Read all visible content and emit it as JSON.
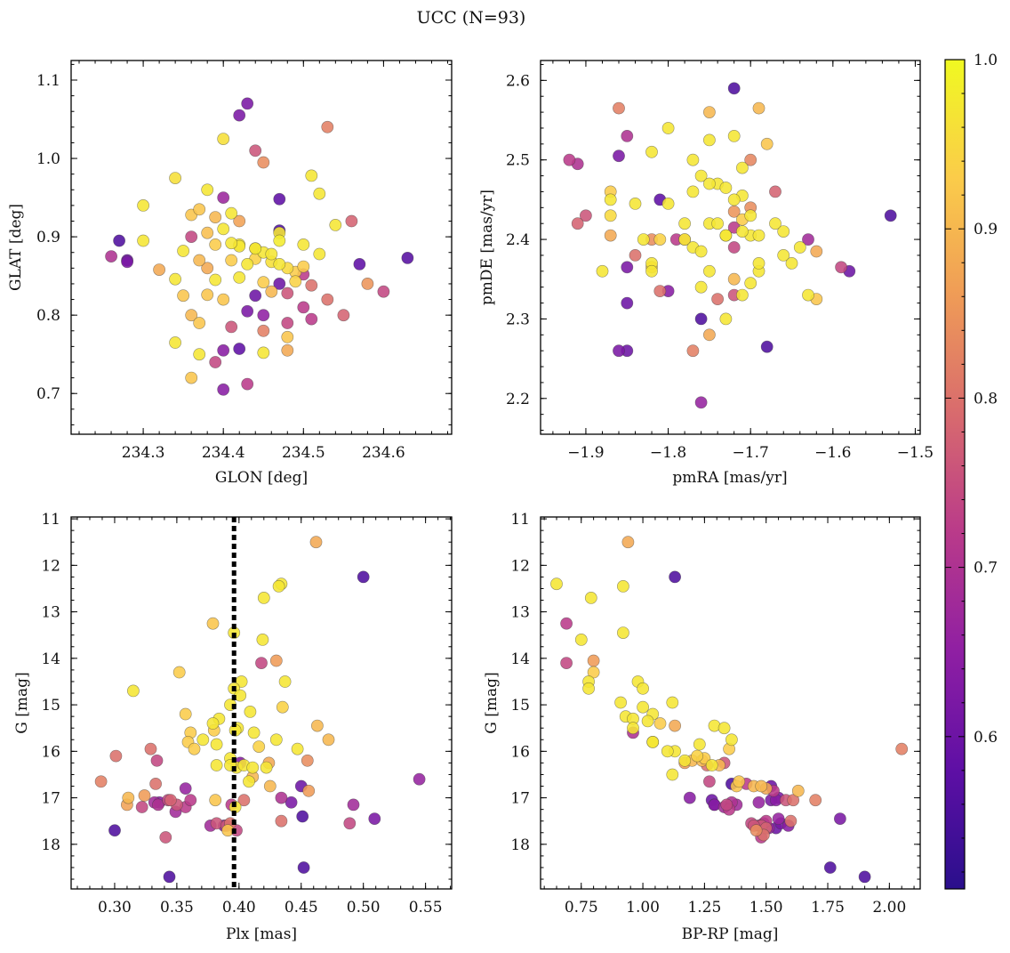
{
  "figure_title": "UCC (N=93)",
  "colorbar": {
    "range": [
      0.51,
      1.0
    ],
    "ticks": [
      "0.6",
      "0.7",
      "0.8",
      "0.9",
      "1.0"
    ],
    "tick_values": [
      0.6,
      0.7,
      0.8,
      0.9,
      1.0
    ],
    "colormap": [
      "#2a0f8c",
      "#5e0fa5",
      "#8f1fa3",
      "#b93a8a",
      "#d86a6e",
      "#ef9b57",
      "#fbcc4a",
      "#f0f921"
    ]
  },
  "chart_data": [
    {
      "type": "scatter",
      "xlabel": "GLON [deg]",
      "ylabel": "GLAT [deg]",
      "xlim": [
        234.21,
        234.685
      ],
      "ylim": [
        0.648,
        1.125
      ],
      "xticks": [
        "234.3",
        "234.4",
        "234.5",
        "234.6"
      ],
      "xtick_values": [
        234.3,
        234.4,
        234.5,
        234.6
      ],
      "yticks": [
        "0.7",
        "0.8",
        "0.9",
        "1.0",
        "1.1"
      ],
      "ytick_values": [
        0.7,
        0.8,
        0.9,
        1.0,
        1.1
      ],
      "y_inverted": false,
      "x": [
        234.43,
        234.42,
        234.53,
        234.4,
        234.44,
        234.45,
        234.51,
        234.34,
        234.38,
        234.3,
        234.4,
        234.47,
        234.52,
        234.41,
        234.36,
        234.37,
        234.39,
        234.42,
        234.54,
        234.56,
        234.3,
        234.36,
        234.38,
        234.4,
        234.42,
        234.44,
        234.45,
        234.47,
        234.5,
        234.52,
        234.27,
        234.28,
        234.32,
        234.38,
        234.41,
        234.43,
        234.44,
        234.46,
        234.47,
        234.48,
        234.49,
        234.5,
        234.26,
        234.28,
        234.34,
        234.39,
        234.42,
        234.45,
        234.47,
        234.49,
        234.51,
        234.57,
        234.58,
        234.6,
        234.63,
        234.35,
        234.38,
        234.4,
        234.44,
        234.46,
        234.48,
        234.5,
        234.36,
        234.43,
        234.45,
        234.48,
        234.51,
        234.53,
        234.55,
        234.37,
        234.41,
        234.45,
        234.48,
        234.34,
        234.37,
        234.4,
        234.42,
        234.45,
        234.48,
        234.39,
        234.36,
        234.4,
        234.43,
        234.47,
        234.39,
        234.42,
        234.46,
        234.35,
        234.37,
        234.41,
        234.44,
        234.47,
        234.5
      ],
      "y": [
        1.07,
        1.055,
        1.04,
        1.025,
        1.01,
        0.995,
        0.978,
        0.975,
        0.96,
        0.94,
        0.95,
        0.948,
        0.955,
        0.93,
        0.928,
        0.935,
        0.925,
        0.92,
        0.915,
        0.92,
        0.895,
        0.9,
        0.905,
        0.91,
        0.89,
        0.885,
        0.88,
        0.895,
        0.89,
        0.878,
        0.895,
        0.87,
        0.858,
        0.86,
        0.87,
        0.865,
        0.872,
        0.868,
        0.865,
        0.86,
        0.855,
        0.852,
        0.875,
        0.868,
        0.846,
        0.845,
        0.848,
        0.842,
        0.84,
        0.843,
        0.838,
        0.865,
        0.84,
        0.83,
        0.873,
        0.825,
        0.826,
        0.82,
        0.825,
        0.83,
        0.828,
        0.81,
        0.8,
        0.805,
        0.8,
        0.79,
        0.795,
        0.82,
        0.8,
        0.79,
        0.785,
        0.78,
        0.772,
        0.765,
        0.75,
        0.755,
        0.757,
        0.752,
        0.755,
        0.74,
        0.72,
        0.705,
        0.712,
        0.908,
        0.89,
        0.888,
        0.878,
        0.882,
        0.87,
        0.892,
        0.885,
        0.905,
        0.862
      ],
      "c": [
        0.62,
        0.62,
        0.82,
        0.96,
        0.76,
        0.84,
        0.97,
        0.96,
        0.97,
        0.97,
        0.67,
        0.58,
        0.97,
        0.97,
        0.92,
        0.92,
        0.9,
        0.87,
        0.97,
        0.78,
        0.97,
        0.74,
        0.91,
        0.97,
        0.97,
        0.88,
        0.97,
        0.98,
        0.97,
        0.97,
        0.56,
        0.6,
        0.88,
        0.88,
        0.93,
        0.97,
        0.94,
        0.96,
        0.97,
        0.95,
        0.93,
        0.72,
        0.7,
        0.62,
        0.97,
        0.97,
        0.97,
        0.93,
        0.6,
        0.94,
        0.8,
        0.58,
        0.85,
        0.74,
        0.57,
        0.92,
        0.92,
        0.92,
        0.6,
        0.9,
        0.76,
        0.72,
        0.9,
        0.62,
        0.65,
        0.74,
        0.72,
        0.8,
        0.78,
        0.92,
        0.76,
        0.82,
        0.92,
        0.97,
        0.97,
        0.64,
        0.58,
        0.97,
        0.88,
        0.74,
        0.92,
        0.64,
        0.72,
        0.56,
        0.93,
        0.97,
        0.97,
        0.97,
        0.9,
        0.97,
        0.98,
        0.97,
        0.93
      ]
    },
    {
      "type": "scatter",
      "xlabel": "pmRA [mas/yr]",
      "ylabel": "pmDE [mas/yr]",
      "xlim": [
        -1.955,
        -1.494
      ],
      "ylim": [
        2.155,
        2.625
      ],
      "xticks": [
        "−1.9",
        "−1.8",
        "−1.7",
        "−1.6",
        "−1.5"
      ],
      "xtick_values": [
        -1.9,
        -1.8,
        -1.7,
        -1.6,
        -1.5
      ],
      "yticks": [
        "2.2",
        "2.3",
        "2.4",
        "2.5",
        "2.6"
      ],
      "ytick_values": [
        2.2,
        2.3,
        2.4,
        2.5,
        2.6
      ],
      "y_inverted": false,
      "x": [
        -1.72,
        -1.86,
        -1.75,
        -1.69,
        -1.85,
        -1.8,
        -1.75,
        -1.72,
        -1.92,
        -1.91,
        -1.82,
        -1.86,
        -1.77,
        -1.7,
        -1.68,
        -1.76,
        -1.74,
        -1.71,
        -1.87,
        -1.81,
        -1.73,
        -1.71,
        -1.8,
        -1.77,
        -1.67,
        -1.7,
        -1.84,
        -1.87,
        -1.78,
        -1.72,
        -1.9,
        -1.91,
        -1.53,
        -1.71,
        -1.75,
        -1.72,
        -1.63,
        -1.66,
        -1.87,
        -1.79,
        -1.82,
        -1.77,
        -1.73,
        -1.7,
        -1.64,
        -1.62,
        -1.84,
        -1.82,
        -1.76,
        -1.59,
        -1.88,
        -1.82,
        -1.75,
        -1.69,
        -1.65,
        -1.58,
        -1.72,
        -1.7,
        -1.8,
        -1.63,
        -1.62,
        -1.71,
        -1.74,
        -1.76,
        -1.72,
        -1.81,
        -1.85,
        -1.76,
        -1.73,
        -1.75,
        -1.85,
        -1.77,
        -1.68,
        -1.85,
        -1.86,
        -1.76,
        -1.78,
        -1.78,
        -1.81,
        -1.72,
        -1.69,
        -1.71,
        -1.73,
        -1.82,
        -1.67,
        -1.66,
        -1.74,
        -1.69,
        -1.83,
        -1.7,
        -1.72,
        -1.75,
        -1.87
      ],
      "y": [
        2.59,
        2.565,
        2.56,
        2.565,
        2.53,
        2.54,
        2.525,
        2.53,
        2.5,
        2.495,
        2.51,
        2.505,
        2.5,
        2.5,
        2.52,
        2.48,
        2.47,
        2.49,
        2.46,
        2.45,
        2.465,
        2.455,
        2.445,
        2.46,
        2.46,
        2.44,
        2.445,
        2.43,
        2.42,
        2.435,
        2.43,
        2.42,
        2.43,
        2.425,
        2.42,
        2.415,
        2.4,
        2.41,
        2.405,
        2.4,
        2.4,
        2.39,
        2.405,
        2.405,
        2.39,
        2.385,
        2.38,
        2.37,
        2.385,
        2.365,
        2.36,
        2.365,
        2.36,
        2.36,
        2.37,
        2.36,
        2.35,
        2.345,
        2.335,
        2.33,
        2.325,
        2.33,
        2.325,
        2.34,
        2.33,
        2.335,
        2.365,
        2.3,
        2.3,
        2.28,
        2.26,
        2.26,
        2.265,
        2.32,
        2.26,
        2.195,
        2.4,
        2.4,
        2.4,
        2.39,
        2.37,
        2.41,
        2.405,
        2.36,
        2.42,
        2.38,
        2.42,
        2.405,
        2.4,
        2.43,
        2.45,
        2.47,
        2.45
      ],
      "c": [
        0.56,
        0.82,
        0.9,
        0.9,
        0.7,
        0.97,
        0.97,
        0.97,
        0.72,
        0.7,
        0.97,
        0.62,
        0.97,
        0.83,
        0.92,
        0.97,
        0.97,
        0.97,
        0.93,
        0.58,
        0.97,
        0.97,
        0.97,
        0.97,
        0.78,
        0.84,
        0.97,
        0.95,
        0.97,
        0.85,
        0.76,
        0.78,
        0.56,
        0.93,
        0.97,
        0.72,
        0.68,
        0.97,
        0.88,
        0.72,
        0.84,
        0.97,
        0.97,
        0.97,
        0.97,
        0.88,
        0.8,
        0.97,
        0.97,
        0.74,
        0.97,
        0.94,
        0.97,
        0.97,
        0.97,
        0.6,
        0.9,
        0.97,
        0.64,
        0.97,
        0.92,
        0.97,
        0.8,
        0.97,
        0.76,
        0.8,
        0.62,
        0.56,
        0.97,
        0.88,
        0.6,
        0.82,
        0.56,
        0.6,
        0.62,
        0.66,
        0.97,
        0.82,
        0.94,
        0.74,
        0.97,
        0.97,
        0.97,
        0.97,
        0.97,
        0.97,
        0.97,
        0.97,
        0.97,
        0.97,
        0.97,
        0.97,
        0.97
      ]
    },
    {
      "type": "scatter",
      "xlabel": "Plx [mas]",
      "ylabel": "G [mag]",
      "xlim": [
        0.265,
        0.571
      ],
      "ylim": [
        10.96,
        18.96
      ],
      "xticks": [
        "0.30",
        "0.35",
        "0.40",
        "0.45",
        "0.50",
        "0.55"
      ],
      "xtick_values": [
        0.3,
        0.35,
        0.4,
        0.45,
        0.5,
        0.55
      ],
      "yticks": [
        "11",
        "12",
        "13",
        "14",
        "15",
        "16",
        "17",
        "18"
      ],
      "ytick_values": [
        11,
        12,
        13,
        14,
        15,
        16,
        17,
        18
      ],
      "y_inverted": true,
      "vline": 0.396,
      "x": [
        0.462,
        0.5,
        0.434,
        0.432,
        0.42,
        0.379,
        0.396,
        0.419,
        0.418,
        0.43,
        0.352,
        0.402,
        0.437,
        0.315,
        0.396,
        0.401,
        0.435,
        0.357,
        0.393,
        0.409,
        0.384,
        0.379,
        0.399,
        0.361,
        0.38,
        0.412,
        0.43,
        0.371,
        0.397,
        0.359,
        0.416,
        0.382,
        0.447,
        0.463,
        0.364,
        0.472,
        0.329,
        0.301,
        0.334,
        0.401,
        0.398,
        0.404,
        0.411,
        0.393,
        0.422,
        0.382,
        0.393,
        0.455,
        0.408,
        0.45,
        0.425,
        0.545,
        0.289,
        0.333,
        0.311,
        0.324,
        0.357,
        0.332,
        0.335,
        0.343,
        0.357,
        0.35,
        0.381,
        0.394,
        0.397,
        0.404,
        0.434,
        0.442,
        0.451,
        0.492,
        0.509,
        0.31,
        0.322,
        0.336,
        0.345,
        0.382,
        0.39,
        0.393,
        0.398,
        0.434,
        0.489,
        0.341,
        0.377,
        0.388,
        0.452,
        0.3,
        0.344,
        0.361,
        0.349,
        0.391,
        0.411,
        0.424,
        0.456
      ],
      "y": [
        11.5,
        12.25,
        12.4,
        12.45,
        12.7,
        13.25,
        13.45,
        13.6,
        14.1,
        14.05,
        14.3,
        14.5,
        14.5,
        14.7,
        14.65,
        14.8,
        15.05,
        15.2,
        15.0,
        15.15,
        15.3,
        15.4,
        15.5,
        15.6,
        15.55,
        15.6,
        15.75,
        15.75,
        15.55,
        15.8,
        15.9,
        15.85,
        15.95,
        15.45,
        15.95,
        15.75,
        15.95,
        16.1,
        16.2,
        16.25,
        16.35,
        16.3,
        16.35,
        16.15,
        16.35,
        16.3,
        16.3,
        16.2,
        16.65,
        16.75,
        16.75,
        16.6,
        16.65,
        16.7,
        17.0,
        16.95,
        16.8,
        17.1,
        17.15,
        17.05,
        17.2,
        17.15,
        17.05,
        17.15,
        17.2,
        17.05,
        17.0,
        17.1,
        17.4,
        17.15,
        17.45,
        17.15,
        17.2,
        17.1,
        17.05,
        17.55,
        17.6,
        17.55,
        17.7,
        17.5,
        17.55,
        17.85,
        17.6,
        17.6,
        18.5,
        17.7,
        18.7,
        17.05,
        17.3,
        17.7,
        16.55,
        16.25,
        16.85
      ],
      "c": [
        0.88,
        0.56,
        0.97,
        0.97,
        0.97,
        0.92,
        0.97,
        0.97,
        0.74,
        0.86,
        0.93,
        0.97,
        0.97,
        0.97,
        0.97,
        0.97,
        0.94,
        0.93,
        0.97,
        0.97,
        0.97,
        0.97,
        0.97,
        0.93,
        0.93,
        0.97,
        0.97,
        0.97,
        0.97,
        0.93,
        0.94,
        0.97,
        0.97,
        0.9,
        0.93,
        0.9,
        0.8,
        0.8,
        0.74,
        0.64,
        0.97,
        0.97,
        0.97,
        0.97,
        0.97,
        0.97,
        0.97,
        0.84,
        0.97,
        0.6,
        0.9,
        0.66,
        0.82,
        0.8,
        0.9,
        0.86,
        0.66,
        0.68,
        0.7,
        0.74,
        0.72,
        0.76,
        0.92,
        0.72,
        0.97,
        0.8,
        0.7,
        0.62,
        0.56,
        0.68,
        0.62,
        0.87,
        0.74,
        0.64,
        0.78,
        0.76,
        0.76,
        0.8,
        0.74,
        0.8,
        0.74,
        0.76,
        0.68,
        0.64,
        0.56,
        0.56,
        0.56,
        0.72,
        0.68,
        0.92,
        0.9,
        0.88,
        0.86
      ]
    },
    {
      "type": "scatter",
      "xlabel": "BP-RP [mag]",
      "ylabel": "G [mag]",
      "xlim": [
        0.585,
        2.125
      ],
      "ylim": [
        10.96,
        18.96
      ],
      "xticks": [
        "0.75",
        "1.00",
        "1.25",
        "1.50",
        "1.75",
        "2.00"
      ],
      "xtick_values": [
        0.75,
        1.0,
        1.25,
        1.5,
        1.75,
        2.0
      ],
      "yticks": [
        "11",
        "12",
        "13",
        "14",
        "15",
        "16",
        "17",
        "18"
      ],
      "ytick_values": [
        11,
        12,
        13,
        14,
        15,
        16,
        17,
        18
      ],
      "y_inverted": true,
      "x": [
        0.94,
        1.13,
        0.65,
        0.92,
        0.79,
        0.69,
        0.75,
        0.92,
        0.8,
        0.69,
        0.8,
        0.78,
        0.98,
        0.78,
        1.0,
        0.91,
        1.12,
        0.93,
        0.96,
        1.04,
        1.0,
        1.13,
        1.02,
        1.29,
        1.13,
        1.33,
        1.1,
        1.04,
        1.25,
        1.36,
        1.35,
        1.28,
        1.17,
        1.2,
        1.31,
        1.17,
        1.24,
        1.22,
        1.33,
        1.36,
        1.38,
        1.39,
        1.42,
        1.45,
        1.48,
        1.5,
        1.52,
        1.63,
        1.55,
        1.61,
        1.54,
        1.47,
        1.38,
        1.52,
        1.28,
        1.29,
        1.36,
        1.34,
        1.58,
        1.44,
        1.7,
        1.49,
        1.5,
        1.51,
        1.19,
        1.35,
        1.29,
        1.33,
        1.27,
        1.26,
        1.53,
        1.48,
        1.5,
        1.55,
        1.56,
        1.45,
        1.47,
        1.49,
        1.46,
        1.6,
        1.59,
        1.48,
        1.54,
        1.8,
        2.05,
        1.76,
        1.9,
        1.07,
        0.96,
        0.96,
        1.04,
        1.12,
        1.23
      ],
      "y": [
        11.5,
        12.25,
        12.4,
        12.45,
        12.7,
        13.25,
        13.6,
        13.45,
        14.05,
        14.1,
        14.3,
        14.5,
        14.5,
        14.65,
        14.65,
        14.95,
        14.95,
        15.25,
        15.3,
        15.2,
        15.05,
        15.45,
        15.35,
        15.45,
        16.0,
        15.5,
        16.0,
        15.8,
        16.15,
        15.75,
        15.95,
        16.3,
        16.2,
        16.2,
        16.3,
        16.25,
        16.2,
        16.1,
        16.25,
        16.7,
        16.75,
        16.65,
        16.7,
        16.75,
        16.75,
        16.8,
        16.75,
        16.85,
        17.0,
        17.05,
        17.05,
        17.1,
        17.15,
        17.05,
        17.05,
        17.15,
        17.1,
        17.15,
        17.05,
        17.55,
        17.05,
        17.55,
        17.5,
        17.65,
        17.0,
        17.25,
        17.15,
        17.2,
        16.65,
        16.3,
        16.85,
        17.6,
        17.65,
        17.45,
        17.55,
        17.6,
        17.6,
        17.8,
        17.7,
        17.5,
        17.6,
        17.85,
        17.65,
        17.45,
        15.95,
        18.5,
        18.7,
        15.4,
        15.6,
        15.5,
        15.8,
        16.5,
        15.85
      ],
      "c": [
        0.88,
        0.56,
        0.97,
        0.97,
        0.97,
        0.72,
        0.97,
        0.97,
        0.86,
        0.74,
        0.93,
        0.97,
        0.97,
        0.97,
        0.97,
        0.97,
        0.97,
        0.97,
        0.97,
        0.97,
        0.97,
        0.88,
        0.97,
        0.97,
        0.97,
        0.97,
        0.97,
        0.97,
        0.93,
        0.97,
        0.93,
        0.97,
        0.97,
        0.9,
        0.9,
        0.86,
        0.9,
        0.94,
        0.76,
        0.56,
        0.92,
        0.92,
        0.72,
        0.9,
        0.9,
        0.88,
        0.6,
        0.9,
        0.62,
        0.8,
        0.64,
        0.66,
        0.68,
        0.62,
        0.6,
        0.64,
        0.7,
        0.74,
        0.76,
        0.74,
        0.82,
        0.68,
        0.72,
        0.66,
        0.64,
        0.72,
        0.6,
        0.68,
        0.74,
        0.8,
        0.72,
        0.76,
        0.78,
        0.66,
        0.62,
        0.76,
        0.72,
        0.8,
        0.84,
        0.8,
        0.64,
        0.72,
        0.6,
        0.62,
        0.82,
        0.56,
        0.56,
        0.93,
        0.7,
        0.97,
        0.97,
        0.97,
        0.97
      ]
    }
  ]
}
